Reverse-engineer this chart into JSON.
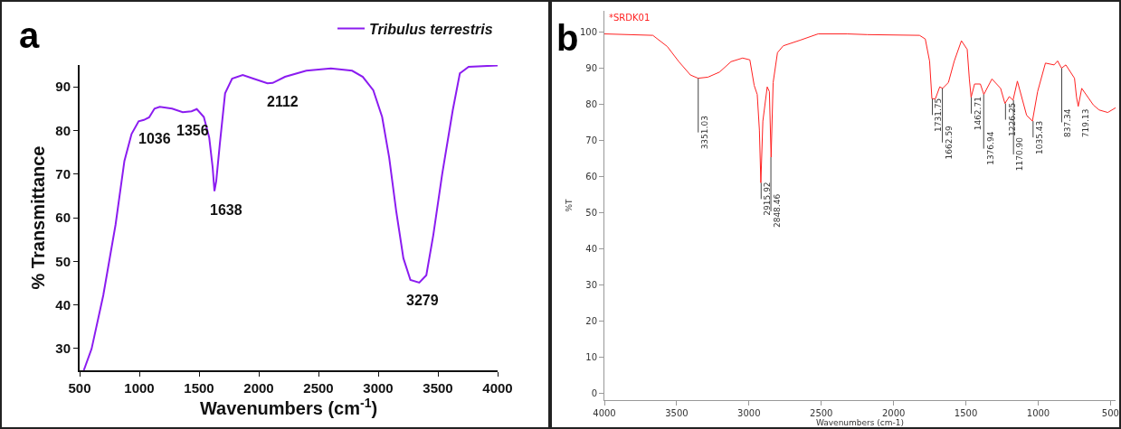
{
  "chart_data": [
    {
      "type": "line",
      "xlabel": "Wavenumbers (cm$^{-1}$)",
      "ylabel": "% Transmittance",
      "xlim": [
        500,
        4000
      ],
      "xticks": [
        500,
        1000,
        1500,
        2000,
        2500,
        3000,
        3500,
        4000
      ],
      "ylim": [
        25,
        95
      ],
      "yticks": [
        30,
        40,
        50,
        60,
        70,
        80,
        90
      ],
      "legend": "top right",
      "series": [
        {
          "name": "Tribulus terrestris",
          "color": "#8b1cf0",
          "x": [
            535,
            600,
            698,
            801,
            875,
            935,
            994,
            1038,
            1082,
            1127,
            1171,
            1274,
            1363,
            1437,
            1481,
            1540,
            1585,
            1614,
            1629,
            1644,
            1674,
            1718,
            1777,
            1866,
            1954,
            2073,
            2117,
            2220,
            2398,
            2604,
            2782,
            2871,
            2959,
            3033,
            3092,
            3151,
            3211,
            3270,
            3344,
            3403,
            3462,
            3536,
            3624,
            3684,
            3757,
            4000
          ],
          "values": [
            25,
            29.9,
            42.2,
            58.4,
            73,
            79.2,
            82.1,
            82.4,
            83,
            85,
            85.4,
            85,
            84.2,
            84.4,
            84.9,
            83.1,
            78.4,
            71.5,
            66.1,
            68.4,
            76.9,
            88.5,
            91.9,
            92.7,
            91.9,
            90.8,
            90.9,
            92.3,
            93.7,
            94.2,
            93.7,
            92.3,
            89.2,
            83.1,
            73.8,
            61.5,
            50.7,
            45.7,
            45.1,
            46.8,
            56.1,
            70,
            84.6,
            93.1,
            94.6,
            94.9
          ]
        }
      ],
      "annotations": [
        "a",
        {
          "text": "1036",
          "x": 1036,
          "y": 82.4
        },
        {
          "text": "1356",
          "x": 1356,
          "y": 84.2
        },
        {
          "text": "1638",
          "x": 1638,
          "y": 66.1
        },
        {
          "text": "2112",
          "x": 2112,
          "y": 90.9
        },
        {
          "text": "3279",
          "x": 3279,
          "y": 45.3
        }
      ]
    },
    {
      "type": "line",
      "xlabel": "Wavenumbers (cm-1)",
      "ylabel": "%T",
      "xlim": [
        4000,
        465
      ],
      "xticks": [
        4000,
        3500,
        3000,
        2500,
        2000,
        1500,
        1000,
        500
      ],
      "ylim": [
        -2,
        106
      ],
      "yticks": [
        0,
        10,
        20,
        30,
        40,
        50,
        60,
        70,
        80,
        90,
        100
      ],
      "series": [
        {
          "name": "*SRDK01",
          "color": "#ff2020",
          "x": [
            4000,
            3665,
            3565,
            3485,
            3405,
            3352,
            3284,
            3204,
            3124,
            3044,
            2994,
            2964,
            2943,
            2928,
            2918,
            2904,
            2874,
            2859,
            2847,
            2833,
            2803,
            2763,
            2643,
            2522,
            2322,
            2182,
            1821,
            1781,
            1751,
            1735,
            1711,
            1681,
            1661,
            1621,
            1581,
            1531,
            1491,
            1476,
            1464,
            1440,
            1400,
            1376,
            1320,
            1260,
            1230,
            1200,
            1174,
            1144,
            1080,
            1040,
            1004,
            950,
            890,
            866,
            839,
            809,
            749,
            735,
            723,
            699,
            619,
            579,
            519,
            465
          ],
          "values": [
            99.6,
            99.2,
            96.1,
            91.9,
            88.2,
            87.3,
            87.6,
            89,
            91.9,
            92.9,
            92.4,
            85.3,
            82.8,
            72.9,
            58.3,
            75.4,
            84.9,
            83.6,
            65.4,
            86.1,
            94.4,
            96.3,
            97.9,
            99.6,
            99.6,
            99.4,
            99.2,
            98.2,
            92,
            81.6,
            81.6,
            84.9,
            84.5,
            86.1,
            92,
            97.7,
            95.3,
            87,
            82,
            85.7,
            85.7,
            82.8,
            87.1,
            84.5,
            80.3,
            82.2,
            81.2,
            86.5,
            77,
            75.4,
            83.6,
            91.5,
            91,
            92.1,
            90.1,
            91,
            87.3,
            82,
            79.5,
            84.5,
            79.9,
            78.5,
            77.8,
            79.1
          ]
        }
      ],
      "annotations": [
        "b",
        {
          "text": "3351.03",
          "x": 3351.03,
          "y": 87.3
        },
        {
          "text": "2915.92",
          "x": 2915.92,
          "y": 58.3
        },
        {
          "text": "2848.46",
          "x": 2848.46,
          "y": 65.4
        },
        {
          "text": "1731.75",
          "x": 1731.75,
          "y": 81.6
        },
        {
          "text": "1662.59",
          "x": 1662.59,
          "y": 84.5
        },
        {
          "text": "1462.71",
          "x": 1462.71,
          "y": 82
        },
        {
          "text": "1376.94",
          "x": 1376.94,
          "y": 82.8
        },
        {
          "text": "1226.25",
          "x": 1226.25,
          "y": 80.3
        },
        {
          "text": "1170.90",
          "x": 1170.9,
          "y": 81.2
        },
        {
          "text": "1035.43",
          "x": 1035.43,
          "y": 75.4
        },
        {
          "text": "837.34",
          "x": 837.34,
          "y": 90.1
        },
        {
          "text": "719.13",
          "x": 719.13,
          "y": 79.5
        }
      ]
    }
  ]
}
